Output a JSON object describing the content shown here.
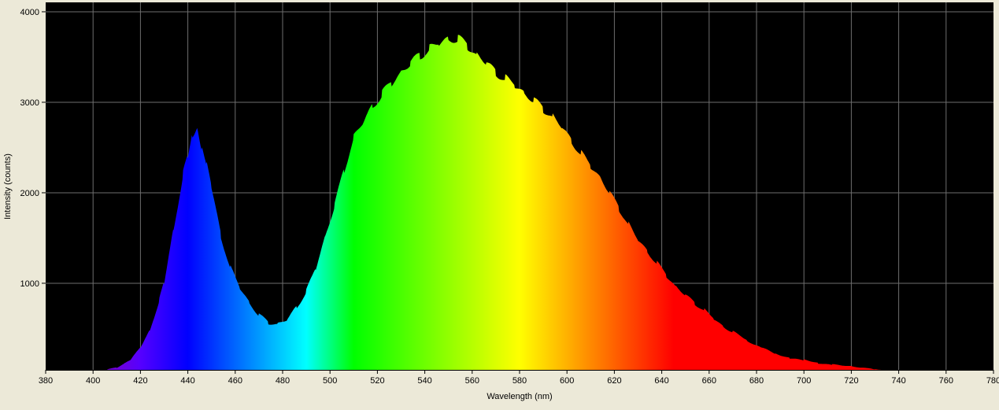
{
  "chart_data": {
    "type": "area",
    "xlabel": "Wavelength (nm)",
    "ylabel": "Intensity (counts)",
    "xlim": [
      380,
      780
    ],
    "ylim": [
      43,
      4104
    ],
    "xticks": [
      380,
      400,
      420,
      440,
      460,
      480,
      500,
      520,
      540,
      560,
      580,
      600,
      620,
      640,
      660,
      680,
      700,
      720,
      740,
      760,
      780
    ],
    "yticks": [
      1000,
      2000,
      3000,
      4000
    ],
    "grid": true,
    "background": "#000000",
    "fill": "wavelength-spectrum-colors",
    "x": [
      406,
      410,
      416,
      420,
      424,
      428,
      430,
      434,
      438,
      440,
      442,
      444,
      446,
      448,
      450,
      454,
      458,
      462,
      466,
      470,
      474,
      478,
      482,
      486,
      490,
      494,
      498,
      502,
      506,
      510,
      514,
      518,
      522,
      526,
      530,
      534,
      538,
      542,
      546,
      550,
      554,
      558,
      562,
      566,
      570,
      574,
      578,
      582,
      586,
      590,
      594,
      598,
      602,
      606,
      610,
      614,
      618,
      622,
      626,
      630,
      634,
      638,
      642,
      646,
      650,
      654,
      658,
      662,
      666,
      670,
      676,
      682,
      688,
      694,
      700,
      706,
      712,
      720,
      730,
      734
    ],
    "y": [
      43,
      70,
      150,
      296,
      478,
      826,
      1000,
      1600,
      2217,
      2390,
      2650,
      2740,
      2480,
      2300,
      2040,
      1520,
      1170,
      950,
      780,
      650,
      565,
      550,
      600,
      740,
      910,
      1170,
      1520,
      1870,
      2260,
      2610,
      2780,
      2960,
      3090,
      3220,
      3330,
      3435,
      3520,
      3590,
      3650,
      3700,
      3700,
      3630,
      3520,
      3435,
      3330,
      3260,
      3190,
      3100,
      3020,
      2930,
      2840,
      2720,
      2570,
      2430,
      2300,
      2170,
      2000,
      1830,
      1650,
      1480,
      1350,
      1220,
      1090,
      960,
      870,
      780,
      700,
      610,
      520,
      460,
      370,
      290,
      220,
      175,
      150,
      120,
      100,
      80,
      50,
      43
    ]
  }
}
